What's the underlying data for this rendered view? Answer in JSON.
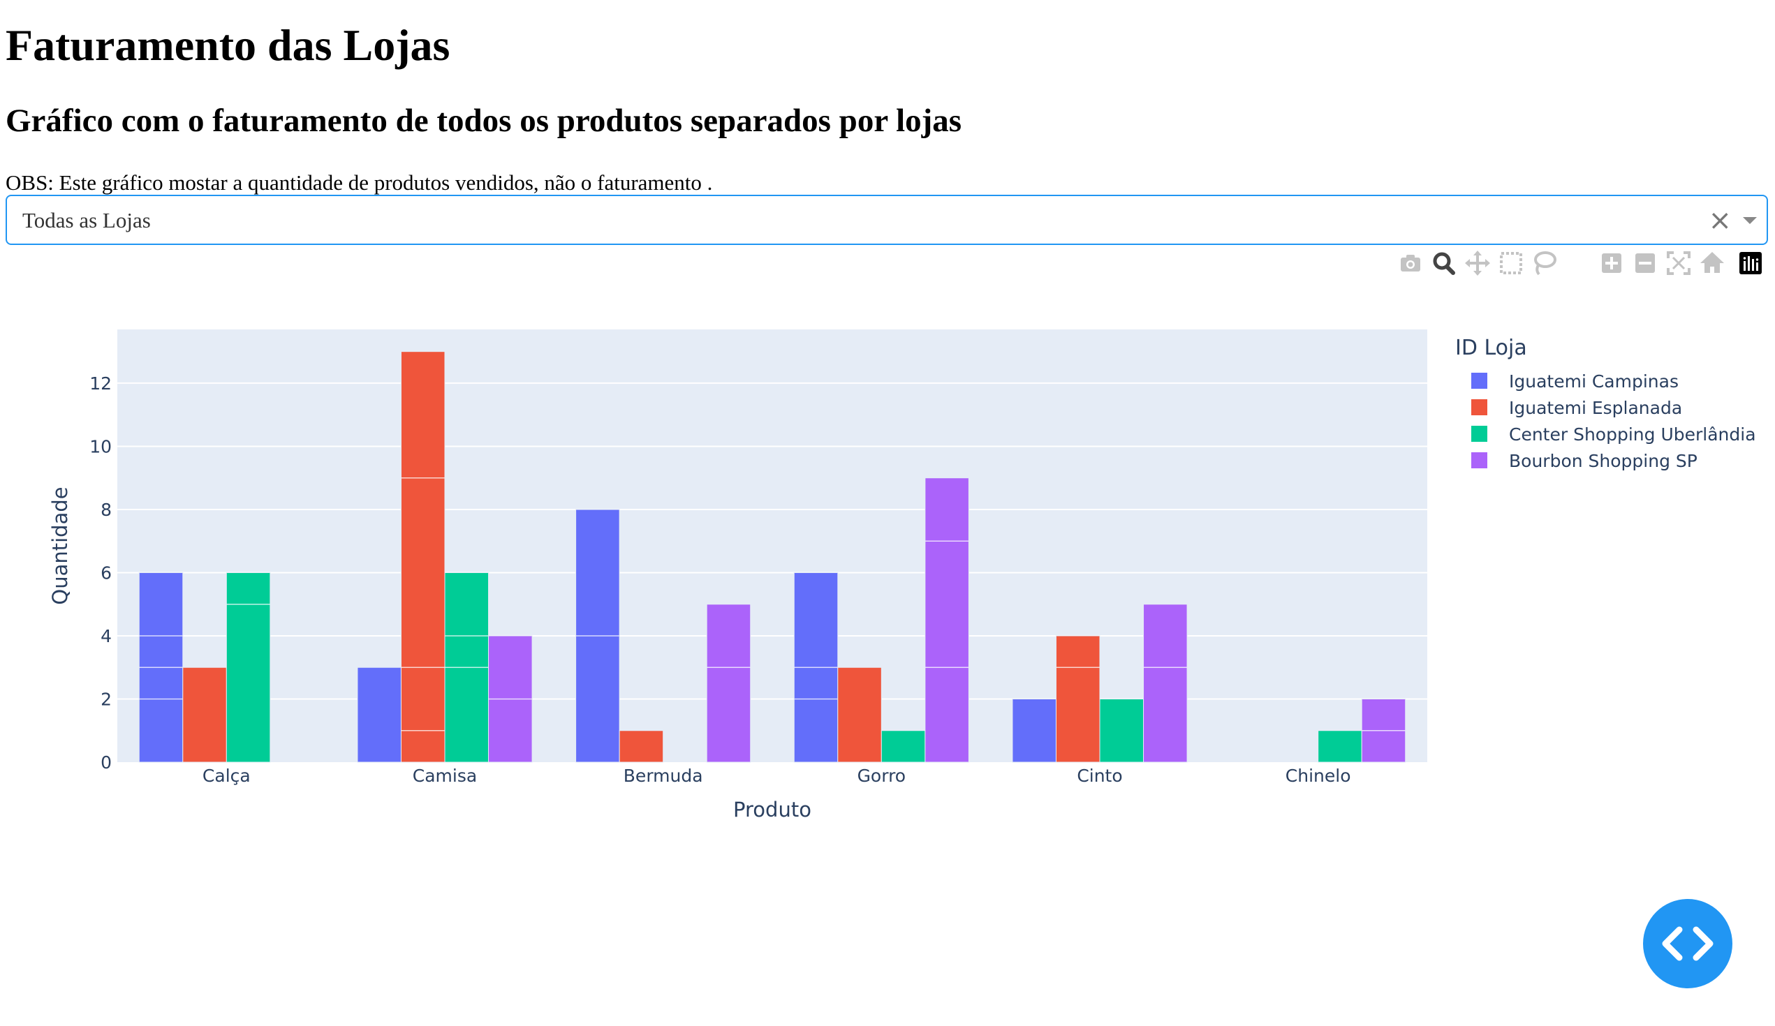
{
  "header": {
    "title": "Faturamento das Lojas",
    "subtitle": "Gráfico com o faturamento de todos os produtos separados por lojas",
    "note": "OBS: Este gráfico mostar a quantidade de produtos vendidos, não o faturamento ."
  },
  "filter": {
    "selected": "Todas as Lojas",
    "clear_symbol": "×"
  },
  "modebar": {
    "icons": [
      "camera-icon",
      "zoom-icon",
      "pan-icon",
      "box-select-icon",
      "lasso-icon",
      "zoom-in-icon",
      "zoom-out-icon",
      "autoscale-icon",
      "reset-axes-icon",
      "plotly-logo-icon"
    ]
  },
  "colors": {
    "accent": "#2196f3",
    "plot_bg": "#e5ecf6",
    "axis_text": "#2a3f5f"
  },
  "chart_data": {
    "type": "bar",
    "barmode": "group",
    "categories": [
      "Calça",
      "Camisa",
      "Bermuda",
      "Gorro",
      "Cinto",
      "Chinelo"
    ],
    "xlabel": "Produto",
    "ylabel": "Quantidade",
    "ylim": [
      0,
      13.7
    ],
    "yticks": [
      0,
      2,
      4,
      6,
      8,
      10,
      12
    ],
    "grid": true,
    "legend": {
      "title": "ID Loja",
      "placement": "right"
    },
    "series": [
      {
        "name": "Iguatemi Campinas",
        "color": "#636efa",
        "values": [
          6,
          3,
          8,
          6,
          2,
          0
        ],
        "segments": [
          [
            2,
            1,
            1,
            2
          ],
          [
            3
          ],
          [
            4,
            4
          ],
          [
            2,
            1,
            3
          ],
          [
            2
          ],
          []
        ]
      },
      {
        "name": "Iguatemi Esplanada",
        "color": "#ef553b",
        "values": [
          3,
          13,
          1,
          3,
          4,
          0
        ],
        "segments": [
          [
            3
          ],
          [
            1,
            2,
            6,
            4
          ],
          [
            1
          ],
          [
            3
          ],
          [
            3,
            1
          ],
          []
        ]
      },
      {
        "name": "Center Shopping Uberlândia",
        "color": "#00cc96",
        "values": [
          6,
          6,
          0,
          1,
          2,
          1
        ],
        "segments": [
          [
            5,
            1
          ],
          [
            3,
            1,
            2
          ],
          [],
          [
            1
          ],
          [
            2
          ],
          [
            1
          ]
        ]
      },
      {
        "name": "Bourbon Shopping SP",
        "color": "#ab63fa",
        "values": [
          0,
          4,
          5,
          9,
          5,
          2
        ],
        "segments": [
          [],
          [
            2,
            2
          ],
          [
            3,
            2
          ],
          [
            3,
            4,
            2
          ],
          [
            3,
            2
          ],
          [
            1,
            1
          ]
        ]
      }
    ]
  }
}
